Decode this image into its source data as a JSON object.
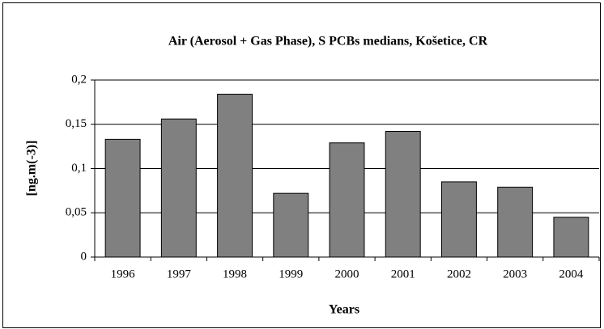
{
  "chart_data": {
    "type": "bar",
    "title": "Air (Aerosol + Gas Phase), S  PCBs medians, Košetice, CR",
    "x_label": "Years",
    "y_label": "[ng.m(-3)]",
    "categories": [
      "1996",
      "1997",
      "1998",
      "1999",
      "2000",
      "2001",
      "2002",
      "2003",
      "2004"
    ],
    "values": [
      0.133,
      0.156,
      0.184,
      0.072,
      0.129,
      0.142,
      0.085,
      0.079,
      0.045
    ],
    "color": "#808080",
    "ylim": [
      0,
      0.2
    ],
    "yticks": [
      0,
      {
        "value": 0.05,
        "label": "0,05"
      },
      {
        "value": 0.1,
        "label": "0,1"
      },
      {
        "value": 0.15,
        "label": "0,15"
      },
      {
        "value": 0.2,
        "label": "0,2"
      }
    ],
    "grid": true
  }
}
